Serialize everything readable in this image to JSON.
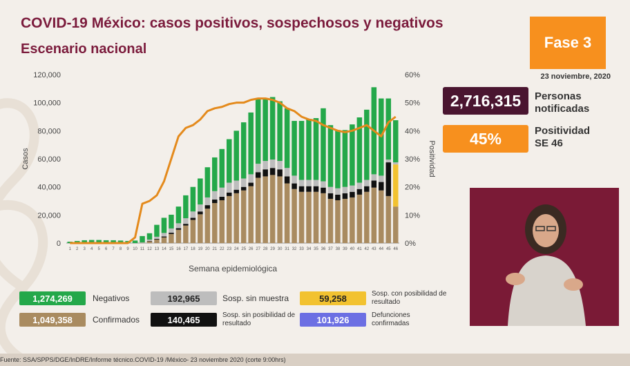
{
  "header": {
    "title": "COVID-19 México: casos positivos, sospechosos y negativos",
    "subtitle": "Escenario nacional",
    "phase": "Fase 3",
    "date": "23 noviembre, 2020"
  },
  "kpis": [
    {
      "value": "2,716,315",
      "label_line1": "Personas",
      "label_line2": "notificadas",
      "color": "#4a1530"
    },
    {
      "value": "45%",
      "label_line1": "Positividad",
      "label_line2": "SE 46",
      "color": "#f7901e"
    }
  ],
  "legend": [
    {
      "value": "1,274,269",
      "label": "Negativos",
      "color": "#24a84a",
      "text_color": "#ffffff"
    },
    {
      "value": "192,965",
      "label": "Sosp. sin muestra",
      "color": "#bdbdbd",
      "text_color": "#222222"
    },
    {
      "value": "59,258",
      "label": "Sosp. con posibilidad de resultado",
      "color": "#f2c230",
      "text_color": "#222222"
    },
    {
      "value": "1,049,358",
      "label": "Confirmados",
      "color": "#a98b60",
      "text_color": "#ffffff"
    },
    {
      "value": "140,465",
      "label": "Sosp. sin posibilidad de resultado",
      "color": "#111111",
      "text_color": "#ffffff"
    },
    {
      "value": "101,926",
      "label": "Defunciones confirmadas",
      "color": "#6c6fe3",
      "text_color": "#ffffff"
    }
  ],
  "footer": "Fuente: SSA/SPPS/DGE/InDRE/Informe técnico.COVID-19 /México- 23 noviembre 2020 (corte 9:00hrs)",
  "chart_data": {
    "type": "bar",
    "xlabel": "Semana epidemiológica",
    "ylabel": "Casos",
    "y2label": "Positividad",
    "ylim": [
      0,
      120000
    ],
    "y2lim": [
      0,
      60
    ],
    "yticks": [
      "0",
      "20,000",
      "40,000",
      "60,000",
      "80,000",
      "100,000",
      "120,000"
    ],
    "y2ticks": [
      "0%",
      "10%",
      "20%",
      "30%",
      "40%",
      "50%",
      "60%"
    ],
    "categories": [
      "1",
      "2",
      "3",
      "4",
      "5",
      "6",
      "7",
      "8",
      "9",
      "10",
      "11",
      "12",
      "13",
      "14",
      "15",
      "16",
      "17",
      "18",
      "19",
      "20",
      "21",
      "22",
      "23",
      "24",
      "25",
      "26",
      "27",
      "28",
      "29",
      "30",
      "31",
      "32",
      "33",
      "34",
      "35",
      "36",
      "37",
      "38",
      "39",
      "40",
      "41",
      "42",
      "43",
      "44",
      "45",
      "46"
    ],
    "series": [
      {
        "name": "Confirmados",
        "color": "#a98b60",
        "values": [
          0,
          0,
          0,
          0,
          0,
          0,
          0,
          0,
          0,
          0,
          200,
          1200,
          2500,
          4000,
          6500,
          9500,
          12500,
          16500,
          20500,
          24500,
          28500,
          30500,
          33500,
          35500,
          37500,
          40500,
          46500,
          47500,
          48500,
          47500,
          42500,
          38500,
          36500,
          36500,
          36500,
          35500,
          31500,
          30500,
          31500,
          32500,
          34500,
          36500,
          39500,
          37500,
          33500,
          26000
        ]
      },
      {
        "name": "Sosp. sin posibilidad de resultado",
        "color": "#111111",
        "values": [
          0,
          0,
          0,
          0,
          0,
          0,
          0,
          0,
          0,
          0,
          0,
          300,
          500,
          700,
          900,
          1100,
          1200,
          1500,
          2000,
          2500,
          2500,
          2500,
          2500,
          2500,
          2500,
          2500,
          4000,
          5000,
          5000,
          5000,
          5000,
          4000,
          4000,
          4000,
          4000,
          4000,
          4000,
          4000,
          4000,
          4000,
          4000,
          4000,
          5000,
          6000,
          24000,
          0
        ]
      },
      {
        "name": "Sosp. con posibilidad de resultado",
        "color": "#f2c230",
        "values": [
          0,
          0,
          0,
          0,
          0,
          0,
          0,
          0,
          0,
          0,
          0,
          0,
          0,
          0,
          0,
          0,
          0,
          0,
          0,
          0,
          0,
          0,
          0,
          0,
          0,
          0,
          0,
          0,
          0,
          0,
          0,
          0,
          0,
          0,
          0,
          0,
          0,
          0,
          0,
          0,
          0,
          0,
          0,
          0,
          0,
          30000
        ]
      },
      {
        "name": "Sosp. sin muestra",
        "color": "#bdbdbd",
        "values": [
          0,
          0,
          0,
          0,
          0,
          0,
          0,
          0,
          0,
          0,
          300,
          1000,
          1500,
          2500,
          3000,
          3500,
          4000,
          4500,
          5000,
          5500,
          6000,
          6500,
          7000,
          6500,
          6000,
          6000,
          6000,
          6000,
          6000,
          6000,
          6000,
          5500,
          4500,
          4500,
          4500,
          4500,
          4500,
          4500,
          4500,
          4500,
          4500,
          4500,
          4500,
          4500,
          2000,
          1500
        ]
      },
      {
        "name": "Negativos",
        "color": "#24a84a",
        "values": [
          1000,
          1500,
          2000,
          2200,
          2200,
          2000,
          2000,
          1800,
          1500,
          1800,
          4500,
          4500,
          8500,
          10800,
          9800,
          11900,
          16300,
          17500,
          18500,
          21500,
          24000,
          27500,
          31000,
          35500,
          40000,
          44000,
          46500,
          44500,
          44500,
          42500,
          42500,
          39000,
          42000,
          43500,
          44000,
          52000,
          44000,
          41500,
          40500,
          43500,
          46500,
          50000,
          62000,
          55000,
          43500,
          30000
        ]
      }
    ],
    "positivity": {
      "name": "Positividad",
      "color": "#e48a1c",
      "values": [
        0,
        0,
        0,
        0,
        0,
        0,
        0,
        0,
        0,
        2,
        14,
        15,
        17,
        22,
        30,
        38,
        41,
        42,
        44,
        47,
        48,
        48.5,
        49.5,
        50,
        50,
        51,
        51.5,
        51.5,
        51,
        50,
        48,
        47,
        45,
        44,
        43.5,
        42,
        41,
        40,
        39.5,
        40,
        41,
        42,
        40,
        38,
        43,
        45
      ]
    }
  }
}
